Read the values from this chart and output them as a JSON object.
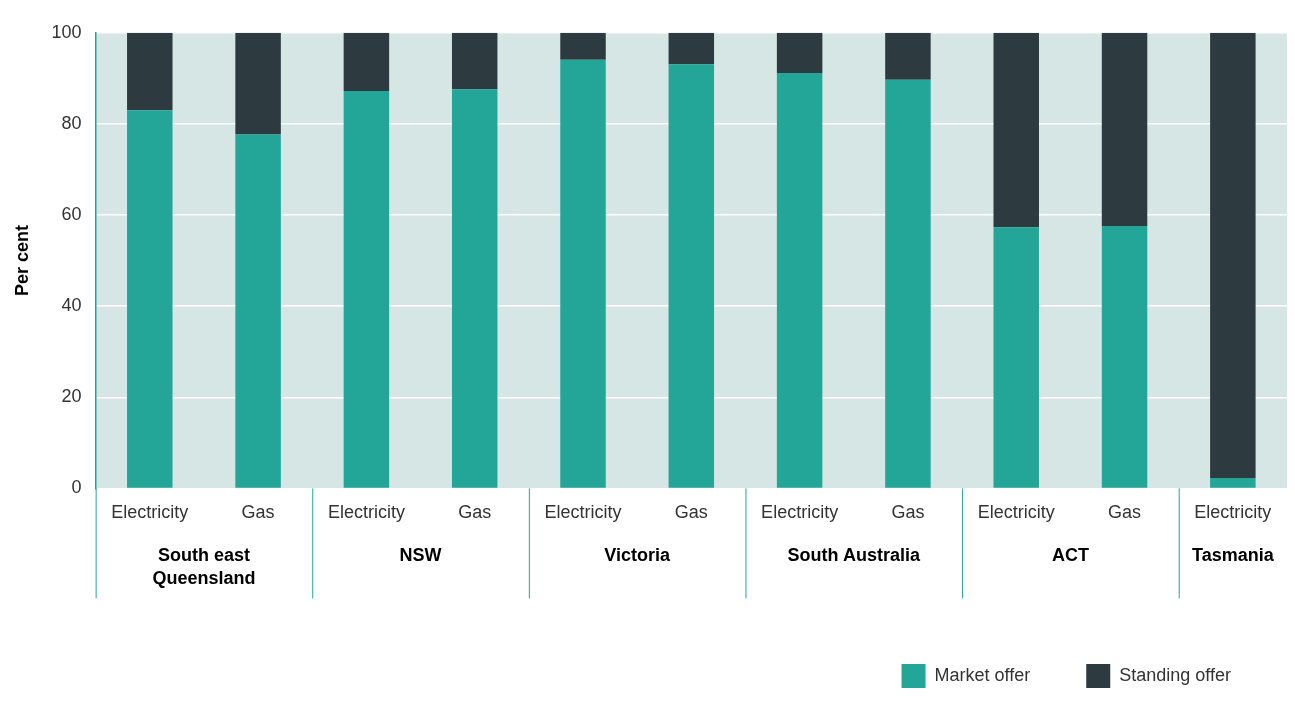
{
  "chart_data": {
    "type": "bar",
    "stacked": true,
    "ylabel": "Per cent",
    "categories": [
      "Electricity",
      "Gas",
      "Electricity",
      "Gas",
      "Electricity",
      "Gas",
      "Electricity",
      "Gas",
      "Electricity",
      "Gas",
      "Electricity"
    ],
    "series": [
      {
        "name": "Market offer",
        "color": "#23a698",
        "values": [
          83.0,
          77.7,
          87.2,
          87.6,
          94.1,
          93.1,
          91.2,
          89.7,
          57.3,
          57.6,
          2.3
        ]
      },
      {
        "name": "Standing offer",
        "color": "#2d3a40",
        "values": [
          17.0,
          22.3,
          12.8,
          12.4,
          5.9,
          6.9,
          8.8,
          10.3,
          42.7,
          42.4,
          97.7
        ]
      }
    ],
    "ylim": [
      0,
      100
    ],
    "yticks": [
      0,
      20,
      40,
      60,
      80,
      100
    ],
    "grid": "y",
    "legend": "bottom right",
    "annotations": [
      "South east Queensland",
      "NSW",
      "Victoria",
      "South Australia",
      "ACT",
      "Tasmania"
    ]
  }
}
